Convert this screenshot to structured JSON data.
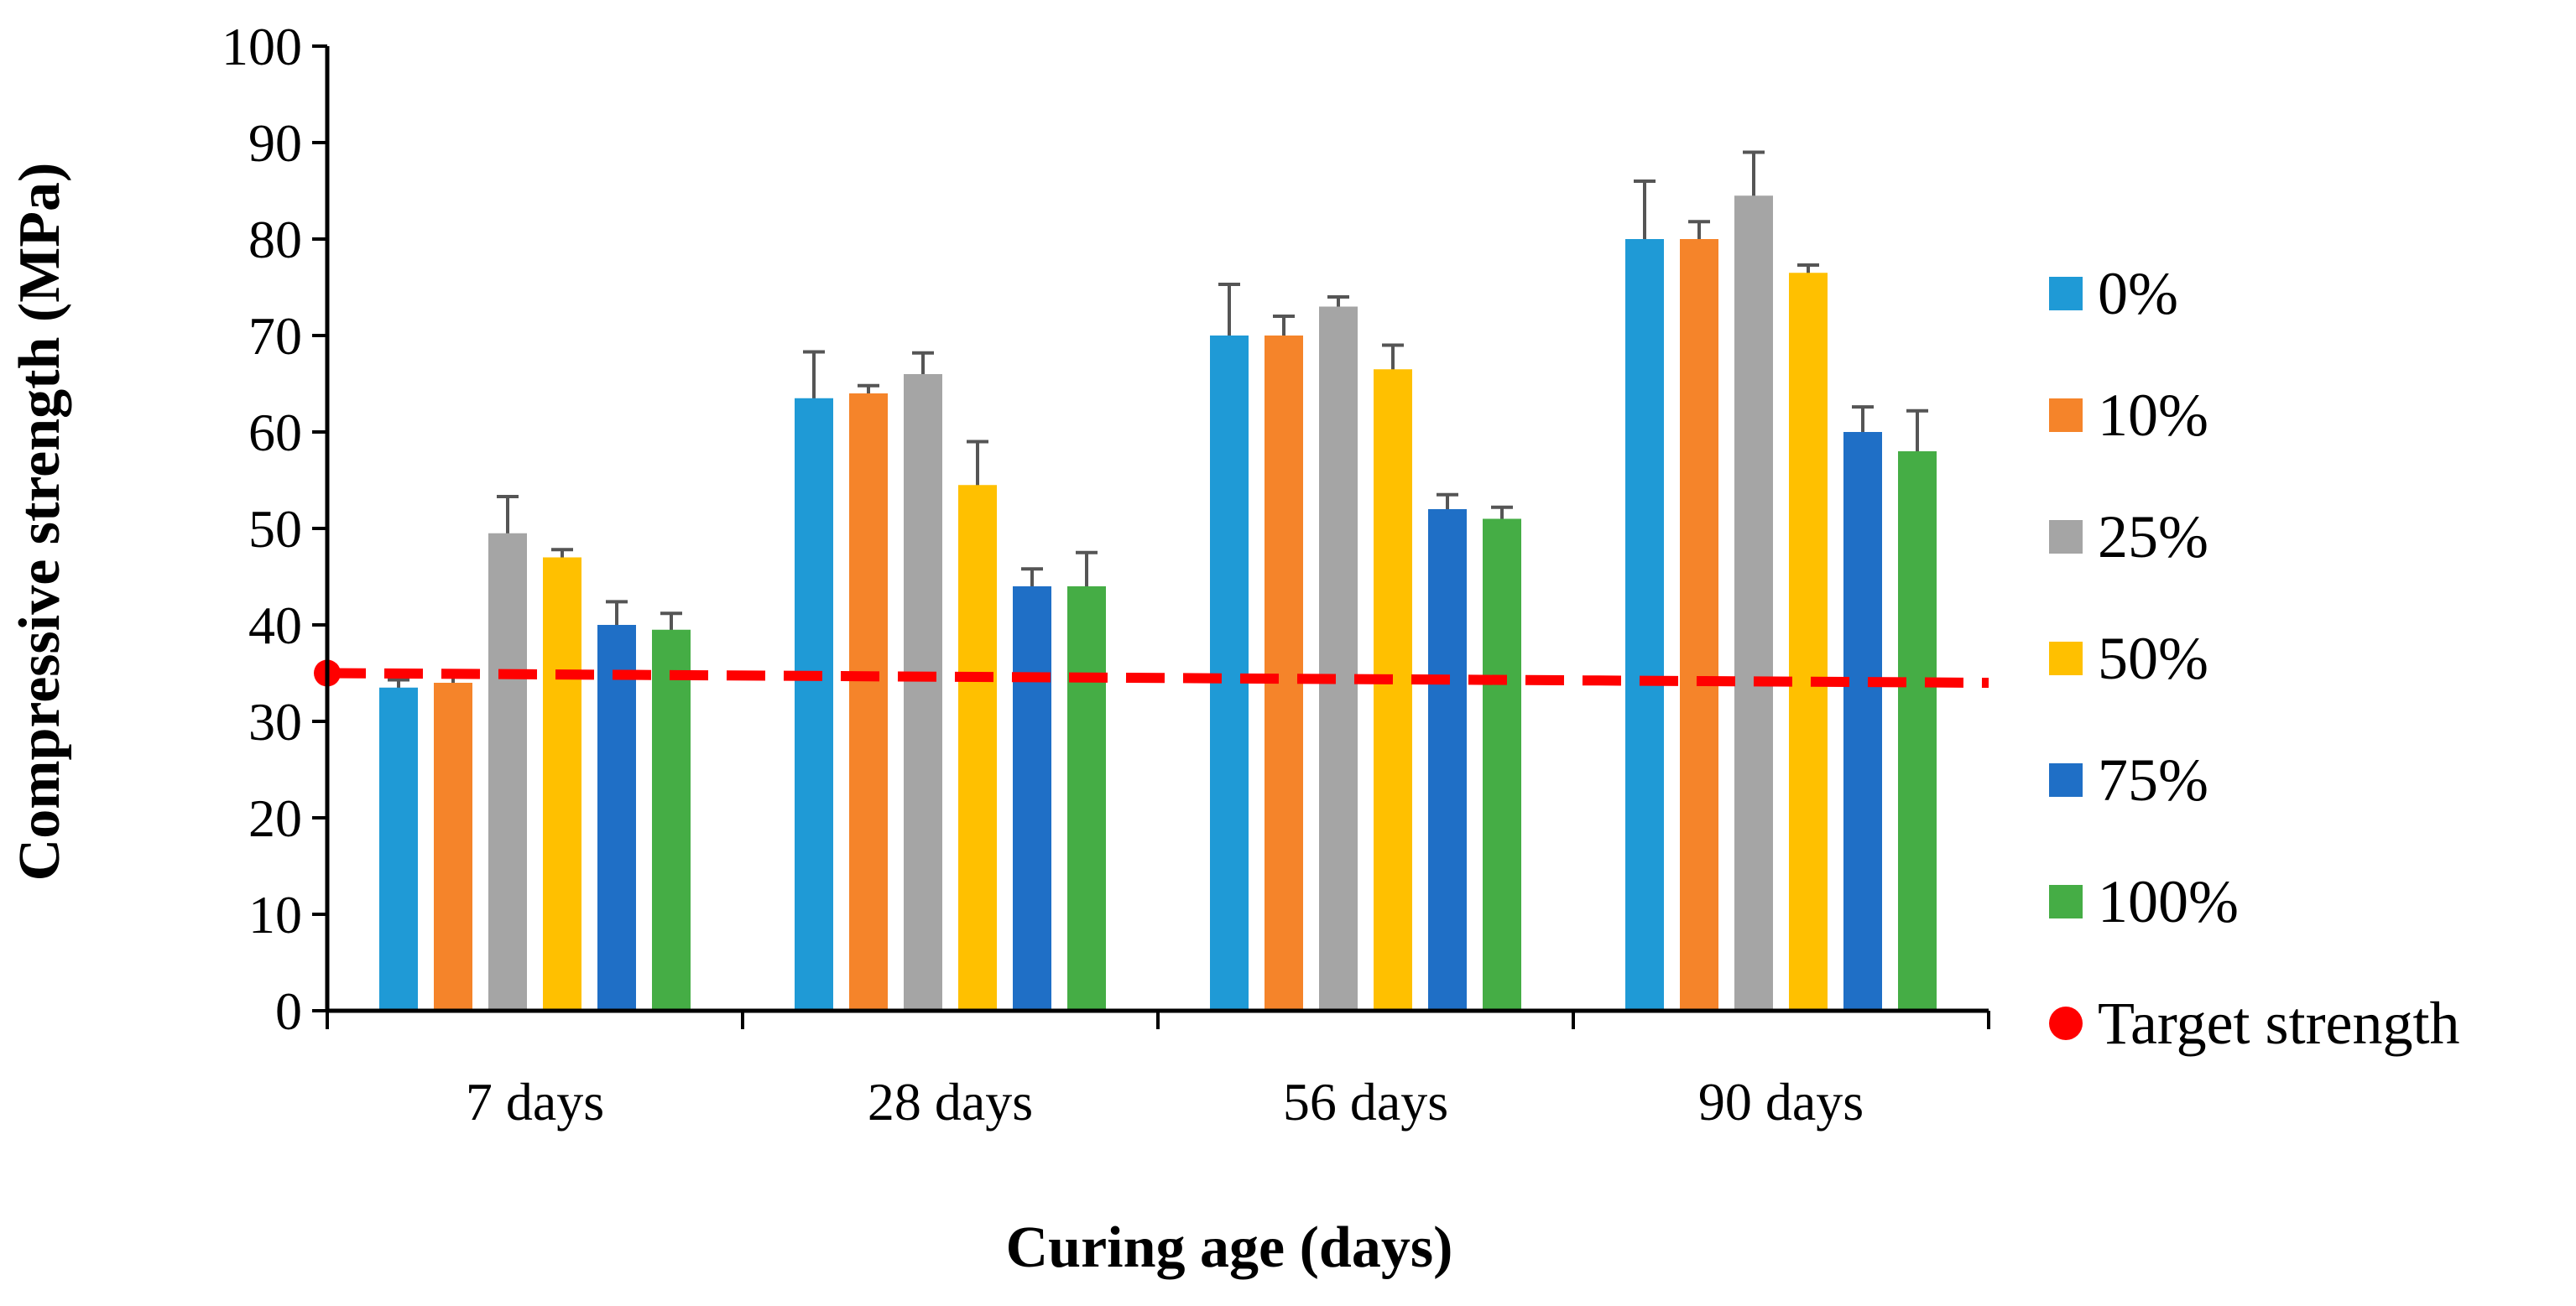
{
  "chart_data": {
    "type": "bar",
    "title": "",
    "xlabel": "Curing age (days)",
    "ylabel": "Compressive strength (MPa)",
    "ylim": [
      0,
      100
    ],
    "yticks": [
      "0",
      "10",
      "20",
      "30",
      "40",
      "50",
      "60",
      "70",
      "80",
      "90",
      "100"
    ],
    "categories": [
      "7 days",
      "28 days",
      "56 days",
      "90 days"
    ],
    "grid": false,
    "legend_position": "right",
    "series": [
      {
        "name": "0%",
        "color": "#1f9ad6",
        "values": [
          33.5,
          63.5,
          70.0,
          80.0
        ],
        "errors": [
          0.8,
          4.8,
          5.3,
          6.0
        ]
      },
      {
        "name": "10%",
        "color": "#f5842a",
        "values": [
          34.0,
          64.0,
          70.0,
          80.0
        ],
        "errors": [
          1.2,
          0.8,
          2.0,
          1.8
        ]
      },
      {
        "name": "25%",
        "color": "#a5a5a5",
        "values": [
          49.5,
          66.0,
          73.0,
          84.5
        ],
        "errors": [
          3.8,
          2.2,
          1.0,
          4.5
        ]
      },
      {
        "name": "50%",
        "color": "#ffc000",
        "values": [
          47.0,
          54.5,
          66.5,
          76.5
        ],
        "errors": [
          0.8,
          4.5,
          2.5,
          0.8
        ]
      },
      {
        "name": "75%",
        "color": "#1f6fc6",
        "values": [
          40.0,
          44.0,
          52.0,
          60.0
        ],
        "errors": [
          2.4,
          1.8,
          1.5,
          2.6
        ]
      },
      {
        "name": "100%",
        "color": "#45ad45",
        "values": [
          39.5,
          44.0,
          51.0,
          58.0
        ],
        "errors": [
          1.7,
          3.5,
          1.2,
          4.2
        ]
      }
    ],
    "target": {
      "name": "Target strength",
      "color": "#ff0000",
      "start": 35.0,
      "end": 34.0
    }
  }
}
